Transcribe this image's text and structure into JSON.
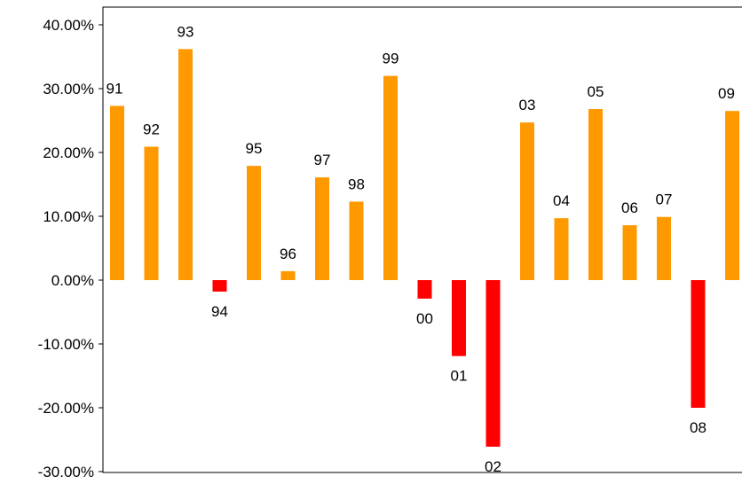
{
  "chart_data": {
    "type": "bar",
    "title": "",
    "xlabel": "",
    "ylabel": "",
    "ylim": [
      -30,
      42.5
    ],
    "y_ticks": [
      40,
      30,
      20,
      10,
      0,
      -10,
      -20,
      -30
    ],
    "y_tick_labels": [
      "40.00%",
      "30.00%",
      "20.00%",
      "10.00%",
      "0.00%",
      "-10.00%",
      "-20.00%",
      "-30.00%"
    ],
    "grid": false,
    "legend": "none",
    "colors": {
      "positive": "#FF9900",
      "negative": "#FF0000",
      "axis": "#000000"
    },
    "categories": [
      "91",
      "92",
      "93",
      "94",
      "95",
      "96",
      "97",
      "98",
      "99",
      "00",
      "01",
      "02",
      "03",
      "04",
      "05",
      "06",
      "07",
      "08",
      "09"
    ],
    "values": [
      27.3,
      20.9,
      36.2,
      -1.8,
      17.9,
      1.4,
      16.1,
      12.3,
      32.0,
      -2.9,
      -11.9,
      -26.1,
      24.7,
      9.7,
      26.8,
      8.6,
      9.9,
      -20.0,
      26.5
    ]
  }
}
